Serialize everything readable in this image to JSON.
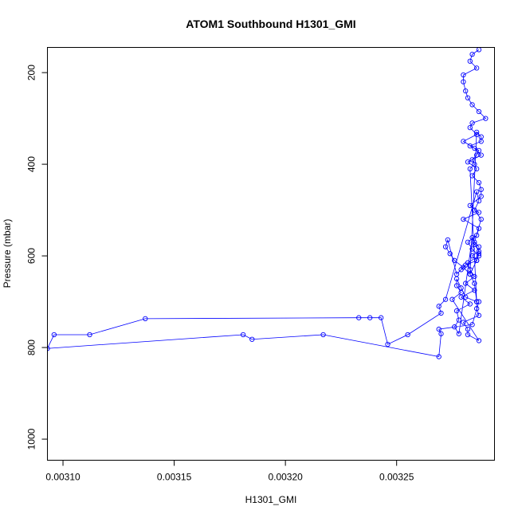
{
  "chart_data": {
    "type": "line",
    "title": "ATOM1 Southbound H1301_GMI",
    "xlabel": "H1301_GMI",
    "ylabel": "Pressure (mbar)",
    "xlim": [
      0.003093,
      0.003294
    ],
    "ylim": [
      1046,
      145
    ],
    "y_reversed": true,
    "x_ticks": [
      {
        "value": 0.0031,
        "label": "0.00310"
      },
      {
        "value": 0.00315,
        "label": "0.00315"
      },
      {
        "value": 0.0032,
        "label": "0.00320"
      },
      {
        "value": 0.00325,
        "label": "0.00325"
      }
    ],
    "y_ticks": [
      {
        "value": 200,
        "label": "200"
      },
      {
        "value": 400,
        "label": "400"
      },
      {
        "value": 600,
        "label": "600"
      },
      {
        "value": 800,
        "label": "800"
      },
      {
        "value": 1000,
        "label": "1000"
      }
    ],
    "grid": false,
    "legend": "none",
    "series_color": "#0000ff",
    "marker": "open-circle",
    "series": [
      {
        "x": [
          0.003287,
          0.003284,
          0.003283,
          0.003286,
          0.00328,
          0.00328,
          0.003281,
          0.003282,
          0.003284,
          0.003287,
          0.00329,
          0.003284,
          0.003283,
          0.003286,
          0.00328,
          0.003285,
          0.003288,
          0.003282,
          0.003286,
          0.003284,
          0.003287,
          0.003288,
          0.003288,
          0.003283,
          0.003287,
          0.00328,
          0.003287,
          0.003286,
          0.003282,
          0.003284,
          0.003287,
          0.003282,
          0.003283,
          0.003285,
          0.003281,
          0.003285,
          0.003279,
          0.003283,
          0.003277,
          0.003278,
          0.003276,
          0.003278,
          0.003284,
          0.003285,
          0.003287,
          0.003284,
          0.003286,
          0.003281,
          0.003279,
          0.003277,
          0.003273,
          0.003272,
          0.003274,
          0.003276,
          0.00328,
          0.003283,
          0.003286,
          0.003288,
          0.003288,
          0.003283,
          0.003287,
          0.003286,
          0.003284,
          0.003285,
          0.003283,
          0.003286,
          0.003286,
          0.003287,
          0.00328,
          0.003282,
          0.003282,
          0.003287,
          0.003275,
          0.003279,
          0.003277,
          0.003277,
          0.003279,
          0.003281,
          0.003286,
          0.003285,
          0.003283,
          0.003286,
          0.003287,
          0.003287,
          0.003285,
          0.003288,
          0.003285,
          0.003287,
          0.003286,
          0.003272,
          0.003269,
          0.00327,
          0.003255,
          0.003246,
          0.003243,
          0.003238,
          0.003233,
          0.003137,
          0.003112,
          0.003096,
          0.003093,
          0.003181,
          0.003185,
          0.003217,
          0.003269,
          0.00327,
          0.003269,
          0.003284,
          0.003287
        ],
        "y": [
          150,
          160,
          175,
          190,
          205,
          220,
          240,
          255,
          270,
          285,
          300,
          310,
          320,
          335,
          350,
          365,
          380,
          395,
          410,
          425,
          440,
          455,
          470,
          490,
          505,
          520,
          540,
          555,
          570,
          585,
          600,
          615,
          630,
          645,
          660,
          675,
          690,
          705,
          720,
          740,
          755,
          770,
          560,
          575,
          590,
          600,
          610,
          620,
          630,
          640,
          565,
          580,
          595,
          610,
          625,
          640,
          330,
          340,
          350,
          360,
          370,
          380,
          390,
          400,
          410,
          700,
          715,
          730,
          745,
          760,
          772,
          785,
          695,
          680,
          665,
          650,
          670,
          690,
          700,
          660,
          640,
          610,
          595,
          580,
          570,
          520,
          500,
          480,
          460,
          695,
          710,
          725,
          772,
          793,
          735,
          735,
          735,
          737,
          772,
          772,
          802,
          772,
          782,
          772,
          820,
          770,
          760,
          750,
          700
        ]
      }
    ]
  }
}
